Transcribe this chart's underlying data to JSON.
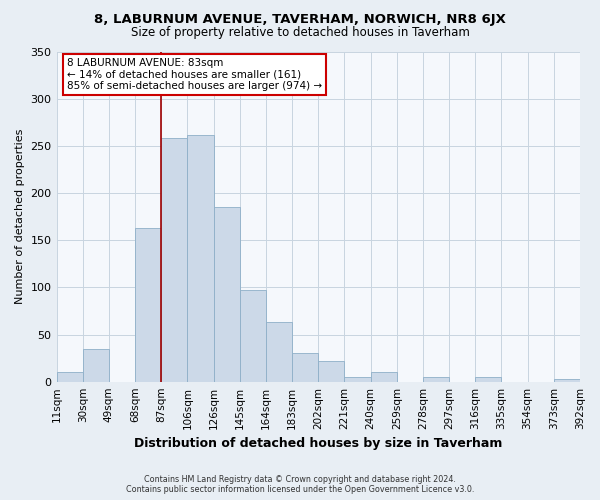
{
  "title1": "8, LABURNUM AVENUE, TAVERHAM, NORWICH, NR8 6JX",
  "title2": "Size of property relative to detached houses in Taverham",
  "xlabel": "Distribution of detached houses by size in Taverham",
  "ylabel": "Number of detached properties",
  "bar_color": "#ccd9e8",
  "bar_edge_color": "#8eafc8",
  "reference_line_x": 87,
  "reference_line_color": "#a00000",
  "bin_edges": [
    11,
    30,
    49,
    68,
    87,
    106,
    125,
    144,
    163,
    182,
    201,
    220,
    239,
    258,
    277,
    296,
    315,
    334,
    353,
    372,
    391
  ],
  "bin_labels": [
    "11sqm",
    "30sqm",
    "49sqm",
    "68sqm",
    "87sqm",
    "106sqm",
    "126sqm",
    "145sqm",
    "164sqm",
    "183sqm",
    "202sqm",
    "221sqm",
    "240sqm",
    "259sqm",
    "278sqm",
    "297sqm",
    "316sqm",
    "335sqm",
    "354sqm",
    "373sqm",
    "392sqm"
  ],
  "bar_heights": [
    10,
    35,
    0,
    163,
    258,
    262,
    185,
    97,
    63,
    30,
    22,
    5,
    10,
    0,
    5,
    0,
    5,
    0,
    0,
    3
  ],
  "ylim": [
    0,
    350
  ],
  "yticks": [
    0,
    50,
    100,
    150,
    200,
    250,
    300,
    350
  ],
  "annotation_title": "8 LABURNUM AVENUE: 83sqm",
  "annotation_line1": "← 14% of detached houses are smaller (161)",
  "annotation_line2": "85% of semi-detached houses are larger (974) →",
  "annotation_box_color": "white",
  "annotation_box_edge": "#cc0000",
  "footer1": "Contains HM Land Registry data © Crown copyright and database right 2024.",
  "footer2": "Contains public sector information licensed under the Open Government Licence v3.0.",
  "background_color": "#e8eef4",
  "plot_background_color": "#f5f8fc",
  "grid_color": "#c8d4e0"
}
